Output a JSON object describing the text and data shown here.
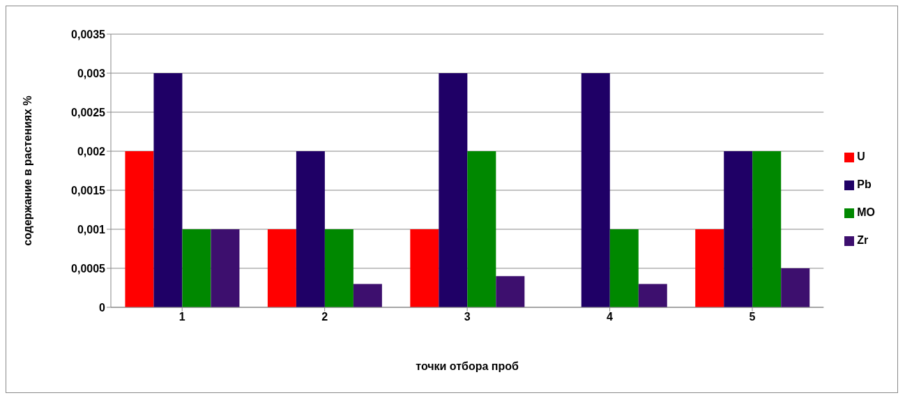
{
  "chart_data": {
    "type": "bar",
    "xlabel": "точки отбора проб",
    "ylabel": "содержание в растениях %",
    "categories": [
      "1",
      "2",
      "3",
      "4",
      "5"
    ],
    "series": [
      {
        "name": "U",
        "color": "#ff0000",
        "values": [
          0.002,
          0.001,
          0.001,
          null,
          0.001
        ]
      },
      {
        "name": "Pb",
        "color": "#1f0066",
        "values": [
          0.003,
          0.002,
          0.003,
          0.003,
          0.002
        ]
      },
      {
        "name": "MO",
        "color": "#008800",
        "values": [
          0.001,
          0.001,
          0.002,
          0.001,
          0.002
        ]
      },
      {
        "name": "Zr",
        "color": "#3d0f6e",
        "values": [
          0.001,
          0.0003,
          0.0004,
          0.0003,
          0.0005
        ]
      }
    ],
    "ylim": [
      0,
      0.0035
    ],
    "yticks": [
      0,
      {
        "value": 0.0005,
        "label": "0,0005"
      },
      {
        "value": 0.001,
        "label": "0,001"
      },
      {
        "value": 0.0015,
        "label": "0,0015"
      },
      {
        "value": 0.002,
        "label": "0,002"
      },
      {
        "value": 0.0025,
        "label": "0,0025"
      },
      {
        "value": 0.003,
        "label": "0,003"
      },
      {
        "value": 0.0035,
        "label": "0,0035"
      }
    ],
    "grid": "y",
    "legend": "right"
  }
}
